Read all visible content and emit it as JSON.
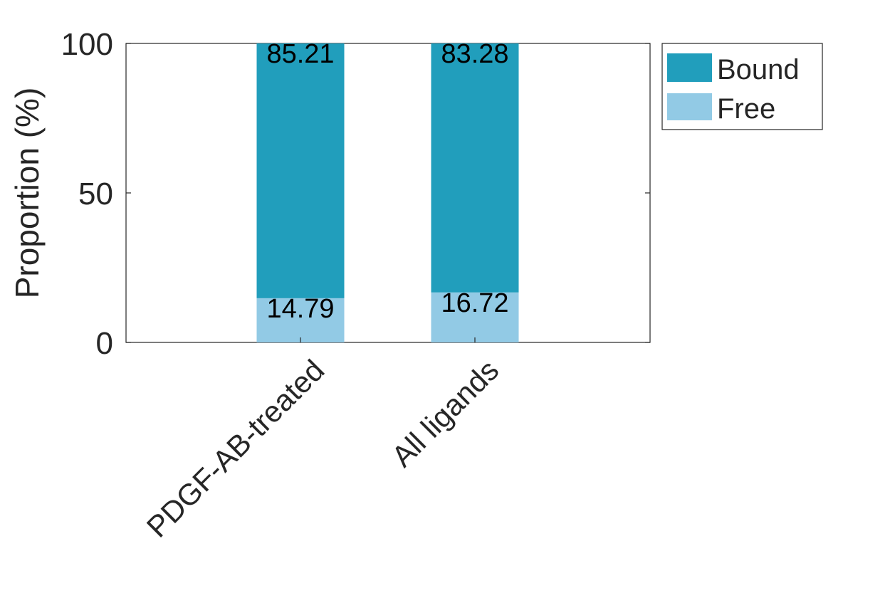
{
  "chart_data": {
    "type": "bar",
    "stacked": true,
    "categories": [
      "PDGF-AB-treated",
      "All ligands"
    ],
    "series": [
      {
        "name": "Free",
        "values": [
          14.79,
          16.72
        ],
        "color": "#92CAE5"
      },
      {
        "name": "Bound",
        "values": [
          85.21,
          83.28
        ],
        "color": "#219EBC"
      }
    ],
    "data_labels": {
      "Free": [
        "14.79",
        "16.72"
      ],
      "Bound": [
        "85.21",
        "83.28"
      ]
    },
    "ylabel": "Proportion (%)",
    "xlabel": "",
    "ylim": [
      0,
      100
    ],
    "yticks": [
      "0",
      "50",
      "100"
    ],
    "grid": false,
    "legend": {
      "position": "outside-top-right",
      "entries": [
        "Bound",
        "Free"
      ]
    }
  }
}
